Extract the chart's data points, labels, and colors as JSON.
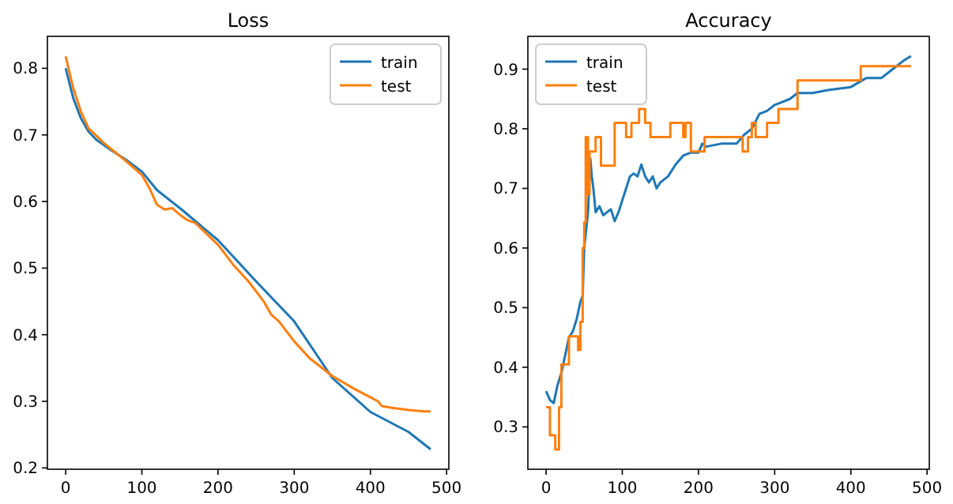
{
  "chart_data": [
    {
      "type": "line",
      "title": "Loss",
      "xlim": [
        -23.95,
        502.95
      ],
      "ylim": [
        0.198,
        0.848
      ],
      "xticks": [
        0,
        100,
        200,
        300,
        400,
        500
      ],
      "yticks": [
        0.2,
        0.3,
        0.4,
        0.5,
        0.6,
        0.7,
        0.8
      ],
      "legend": "top right",
      "series": [
        {
          "name": "train",
          "color": "#1f77b4",
          "x": [
            0,
            10,
            20,
            30,
            40,
            60,
            80,
            100,
            120,
            150,
            200,
            250,
            300,
            350,
            400,
            450,
            479
          ],
          "values": [
            0.8,
            0.755,
            0.725,
            0.705,
            0.693,
            0.677,
            0.662,
            0.645,
            0.617,
            0.59,
            0.542,
            0.48,
            0.42,
            0.335,
            0.284,
            0.254,
            0.228
          ]
        },
        {
          "name": "test",
          "color": "#ff7f0e",
          "x": [
            0,
            10,
            20,
            30,
            50,
            80,
            100,
            110,
            120,
            130,
            140,
            150,
            160,
            170,
            200,
            220,
            240,
            260,
            270,
            280,
            300,
            320,
            350,
            380,
            400,
            410,
            415,
            430,
            450,
            470,
            479
          ],
          "values": [
            0.818,
            0.77,
            0.735,
            0.71,
            0.688,
            0.66,
            0.64,
            0.62,
            0.595,
            0.588,
            0.59,
            0.58,
            0.572,
            0.568,
            0.535,
            0.505,
            0.48,
            0.45,
            0.43,
            0.42,
            0.39,
            0.365,
            0.338,
            0.318,
            0.306,
            0.3,
            0.293,
            0.29,
            0.287,
            0.285,
            0.285
          ]
        }
      ]
    },
    {
      "type": "line",
      "title": "Accuracy",
      "xlim": [
        -23.95,
        502.95
      ],
      "ylim": [
        0.229,
        0.955
      ],
      "xticks": [
        0,
        100,
        200,
        300,
        400,
        500
      ],
      "yticks": [
        0.3,
        0.4,
        0.5,
        0.6,
        0.7,
        0.8,
        0.9
      ],
      "legend": "top left",
      "series": [
        {
          "name": "train",
          "color": "#1f77b4",
          "x": [
            0,
            5,
            10,
            15,
            20,
            25,
            30,
            35,
            40,
            45,
            48,
            50,
            55,
            58,
            60,
            62,
            65,
            70,
            75,
            80,
            85,
            90,
            95,
            100,
            105,
            110,
            115,
            120,
            125,
            130,
            135,
            140,
            145,
            150,
            160,
            170,
            180,
            190,
            200,
            205,
            210,
            230,
            250,
            260,
            270,
            280,
            290,
            300,
            310,
            320,
            330,
            350,
            370,
            400,
            420,
            440,
            450,
            460,
            470,
            479
          ],
          "values": [
            0.36,
            0.345,
            0.34,
            0.37,
            0.39,
            0.42,
            0.45,
            0.46,
            0.48,
            0.51,
            0.52,
            0.6,
            0.66,
            0.75,
            0.72,
            0.7,
            0.66,
            0.67,
            0.655,
            0.66,
            0.665,
            0.645,
            0.66,
            0.68,
            0.7,
            0.72,
            0.725,
            0.72,
            0.74,
            0.72,
            0.71,
            0.72,
            0.7,
            0.71,
            0.72,
            0.74,
            0.755,
            0.76,
            0.76,
            0.775,
            0.77,
            0.775,
            0.775,
            0.79,
            0.8,
            0.825,
            0.83,
            0.84,
            0.845,
            0.85,
            0.86,
            0.86,
            0.865,
            0.87,
            0.885,
            0.885,
            0.895,
            0.905,
            0.915,
            0.922
          ]
        },
        {
          "name": "test",
          "type": "step",
          "color": "#ff7f0e",
          "x": [
            0,
            5,
            12,
            17,
            20,
            30,
            42,
            45,
            48,
            50,
            52,
            55,
            57,
            65,
            72,
            90,
            105,
            112,
            122,
            130,
            137,
            163,
            180,
            183,
            190,
            208,
            258,
            265,
            270,
            275,
            290,
            305,
            330,
            413,
            479
          ],
          "values": [
            0.333,
            0.286,
            0.262,
            0.333,
            0.405,
            0.452,
            0.429,
            0.476,
            0.6,
            0.643,
            0.786,
            0.69,
            0.762,
            0.786,
            0.738,
            0.81,
            0.786,
            0.81,
            0.833,
            0.81,
            0.786,
            0.81,
            0.786,
            0.81,
            0.762,
            0.786,
            0.762,
            0.786,
            0.81,
            0.786,
            0.81,
            0.833,
            0.881,
            0.905,
            0.905
          ]
        }
      ]
    }
  ]
}
